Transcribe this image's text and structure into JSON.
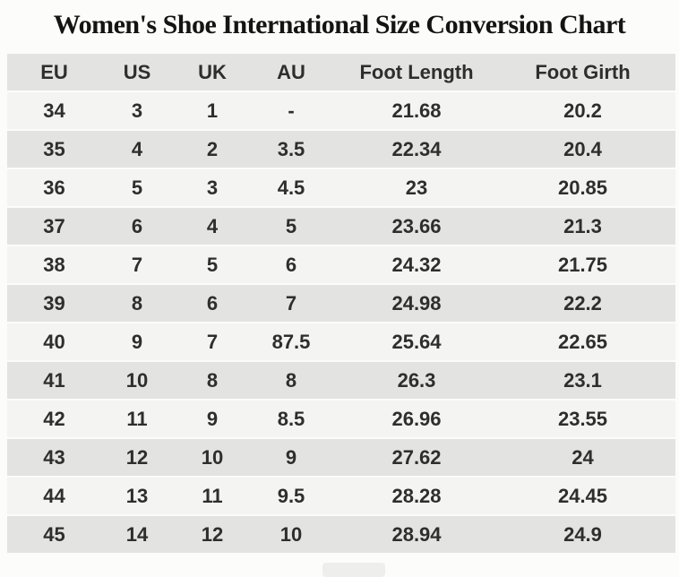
{
  "title": "Women's Shoe International Size Conversion Chart",
  "colors": {
    "page_bg": "#fcfcfb",
    "header_row_bg": "#e3e3e1",
    "row_bg": "#e3e3e1",
    "row_alt_bg": "#f4f4f2",
    "cell_text": "#2e2e2c",
    "title_text": "#141412"
  },
  "chart_data": {
    "type": "table",
    "title": "Women's Shoe International Size Conversion Chart",
    "columns": [
      "EU",
      "US",
      "UK",
      "AU",
      "Foot Length",
      "Foot Girth"
    ],
    "rows": [
      [
        "34",
        "3",
        "1",
        "-",
        "21.68",
        "20.2"
      ],
      [
        "35",
        "4",
        "2",
        "3.5",
        "22.34",
        "20.4"
      ],
      [
        "36",
        "5",
        "3",
        "4.5",
        "23",
        "20.85"
      ],
      [
        "37",
        "6",
        "4",
        "5",
        "23.66",
        "21.3"
      ],
      [
        "38",
        "7",
        "5",
        "6",
        "24.32",
        "21.75"
      ],
      [
        "39",
        "8",
        "6",
        "7",
        "24.98",
        "22.2"
      ],
      [
        "40",
        "9",
        "7",
        "87.5",
        "25.64",
        "22.65"
      ],
      [
        "41",
        "10",
        "8",
        "8",
        "26.3",
        "23.1"
      ],
      [
        "42",
        "11",
        "9",
        "8.5",
        "26.96",
        "23.55"
      ],
      [
        "43",
        "12",
        "10",
        "9",
        "27.62",
        "24"
      ],
      [
        "44",
        "13",
        "11",
        "9.5",
        "28.28",
        "24.45"
      ],
      [
        "45",
        "14",
        "12",
        "10",
        "28.94",
        "24.9"
      ]
    ],
    "layout": {
      "grid": "off",
      "row_striping": "alternating light/gray, header gray",
      "row_separator": "2px white gap"
    }
  }
}
